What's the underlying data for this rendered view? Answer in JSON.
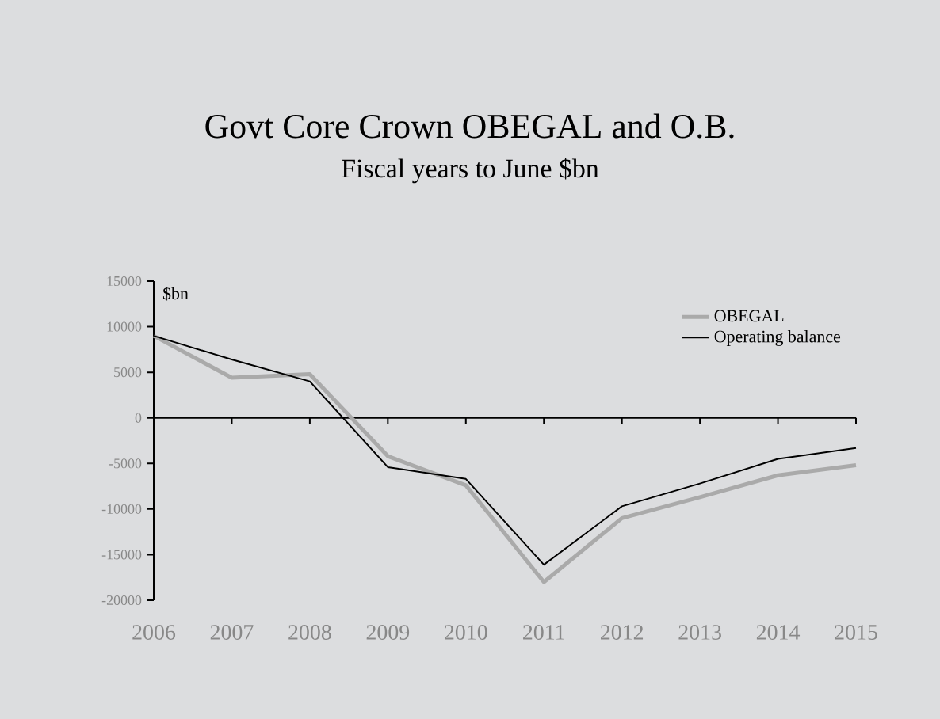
{
  "chart_data": {
    "type": "line",
    "title": "Govt Core Crown OBEGAL and O.B.",
    "subtitle": "Fiscal years to June $bn",
    "ylabel": "$bn",
    "categories": [
      "2006",
      "2007",
      "2008",
      "2009",
      "2010",
      "2011",
      "2012",
      "2013",
      "2014",
      "2015"
    ],
    "series": [
      {
        "name": "OBEGAL",
        "color": "#aaaaaa",
        "values": [
          9000,
          4400,
          4800,
          -4200,
          -7400,
          -18000,
          -11000,
          -8700,
          -6300,
          -5200
        ]
      },
      {
        "name": "Operating balance",
        "color": "#000000",
        "values": [
          9000,
          6400,
          4000,
          -5400,
          -6700,
          -16100,
          -9700,
          -7200,
          -4500,
          -3300
        ]
      }
    ],
    "ylim": [
      -20000,
      15000
    ],
    "yticks": [
      -20000,
      -15000,
      -10000,
      -5000,
      0,
      5000,
      10000,
      15000
    ],
    "legend": "top right",
    "marker": "none",
    "line_style": "solid"
  }
}
